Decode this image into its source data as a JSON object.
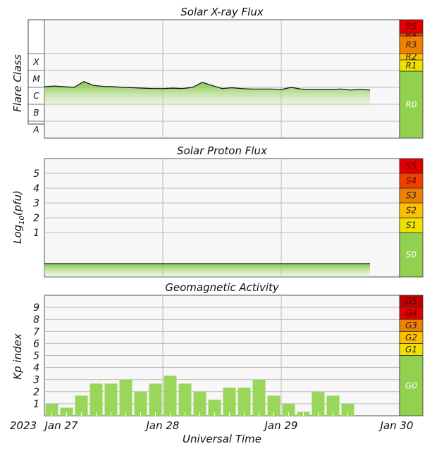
{
  "colors": {
    "green": "#92d050",
    "green_fill": "#9ad65a",
    "yellow": "#f0e000",
    "gold": "#ffc000",
    "orange": "#f08000",
    "red_orange": "#f04000",
    "red": "#e00000",
    "dark_red": "#c00000",
    "grid": "#bbbbbb",
    "line": "#111111"
  },
  "chart_data": [
    {
      "type": "area",
      "title": "Solar X-ray Flux",
      "ylabel": "Flare Class",
      "log_scale": true,
      "ylim": [
        1e-09,
        0.01
      ],
      "y_classes": [
        {
          "label": "A",
          "value": 1e-08
        },
        {
          "label": "B",
          "value": 1e-07
        },
        {
          "label": "C",
          "value": 1e-06
        },
        {
          "label": "M",
          "value": 1e-05
        },
        {
          "label": "X",
          "value": 0.0001
        }
      ],
      "x": [
        "2023-01-27 00:00",
        "2023-01-27 02:00",
        "2023-01-27 04:00",
        "2023-01-27 06:00",
        "2023-01-27 08:00",
        "2023-01-27 10:00",
        "2023-01-27 12:00",
        "2023-01-27 14:00",
        "2023-01-27 16:00",
        "2023-01-27 18:00",
        "2023-01-27 20:00",
        "2023-01-27 22:00",
        "2023-01-28 00:00",
        "2023-01-28 02:00",
        "2023-01-28 04:00",
        "2023-01-28 06:00",
        "2023-01-28 08:00",
        "2023-01-28 10:00",
        "2023-01-28 12:00",
        "2023-01-28 14:00",
        "2023-01-28 16:00",
        "2023-01-28 18:00",
        "2023-01-28 20:00",
        "2023-01-28 22:00",
        "2023-01-29 00:00",
        "2023-01-29 02:00",
        "2023-01-29 04:00",
        "2023-01-29 06:00",
        "2023-01-29 08:00",
        "2023-01-29 10:00",
        "2023-01-29 12:00",
        "2023-01-29 14:00",
        "2023-01-29 16:00",
        "2023-01-29 18:00"
      ],
      "values": [
        1.1e-06,
        1.2e-06,
        1.1e-06,
        1e-06,
        2.2e-06,
        1.3e-06,
        1.15e-06,
        1.1e-06,
        1e-06,
        9.5e-07,
        9e-07,
        8.5e-07,
        8.5e-07,
        9e-07,
        8.5e-07,
        1e-06,
        2e-06,
        1.3e-06,
        8.5e-07,
        9.5e-07,
        8.5e-07,
        8e-07,
        8e-07,
        8e-07,
        7.5e-07,
        1e-06,
        8e-07,
        7.5e-07,
        7.5e-07,
        7.5e-07,
        8e-07,
        7e-07,
        7.5e-07,
        7e-07
      ],
      "scale": [
        {
          "label": "R0",
          "color": "#92d050"
        },
        {
          "label": "R1",
          "color": "#f0e000"
        },
        {
          "label": "R2",
          "color": "#ffc000"
        },
        {
          "label": "R3",
          "color": "#f08000"
        },
        {
          "label": "R4",
          "color": "#f04000"
        },
        {
          "label": "R5",
          "color": "#e00000"
        }
      ],
      "grid": true
    },
    {
      "type": "area",
      "title": "Solar Proton Flux",
      "ylabel": "Log10(pfu)",
      "ylabel_base": "Log",
      "ylabel_sub": "10",
      "ylabel_rest": "(pfu)",
      "ylim": [
        -2,
        6
      ],
      "yticks": [
        1,
        2,
        3,
        4,
        5
      ],
      "x": [
        "2023-01-27 00:00",
        "2023-01-27 12:00",
        "2023-01-28 00:00",
        "2023-01-28 12:00",
        "2023-01-29 00:00",
        "2023-01-29 12:00",
        "2023-01-29 18:00"
      ],
      "values": [
        -1.1,
        -1.1,
        -1.1,
        -1.1,
        -1.1,
        -1.1,
        -1.1
      ],
      "scale": [
        {
          "label": "S0",
          "color": "#92d050"
        },
        {
          "label": "S1",
          "color": "#f0e000"
        },
        {
          "label": "S2",
          "color": "#ffc000"
        },
        {
          "label": "S3",
          "color": "#f08000"
        },
        {
          "label": "S4",
          "color": "#f04000"
        },
        {
          "label": "S5",
          "color": "#e00000"
        }
      ],
      "grid": true
    },
    {
      "type": "bar",
      "title": "Geomagnetic Activity",
      "ylabel": "Kp index",
      "xlabel": "Universal Time",
      "ylim": [
        0,
        10
      ],
      "yticks": [
        1,
        2,
        3,
        4,
        5,
        6,
        7,
        8,
        9
      ],
      "categories": [
        "2023-01-27 00:00",
        "2023-01-27 03:00",
        "2023-01-27 06:00",
        "2023-01-27 09:00",
        "2023-01-27 12:00",
        "2023-01-27 15:00",
        "2023-01-27 18:00",
        "2023-01-27 21:00",
        "2023-01-28 00:00",
        "2023-01-28 03:00",
        "2023-01-28 06:00",
        "2023-01-28 09:00",
        "2023-01-28 12:00",
        "2023-01-28 15:00",
        "2023-01-28 18:00",
        "2023-01-28 21:00",
        "2023-01-29 00:00",
        "2023-01-29 03:00",
        "2023-01-29 06:00",
        "2023-01-29 09:00",
        "2023-01-29 12:00"
      ],
      "values": [
        1.0,
        0.67,
        1.67,
        2.67,
        2.67,
        3.0,
        2.0,
        2.67,
        3.33,
        2.67,
        2.0,
        1.33,
        2.33,
        2.33,
        3.0,
        1.67,
        1.0,
        0.33,
        2.0,
        1.67,
        1.0
      ],
      "scale": [
        {
          "label": "G0",
          "color": "#92d050"
        },
        {
          "label": "G1",
          "color": "#f0e000"
        },
        {
          "label": "G2",
          "color": "#ffc000"
        },
        {
          "label": "G3",
          "color": "#f08000"
        },
        {
          "label": "G4",
          "color": "#e00000"
        },
        {
          "label": "G5",
          "color": "#c00000"
        }
      ],
      "grid": true
    }
  ],
  "x_axis": {
    "year": "2023",
    "tick_labels": [
      "Jan 27",
      "Jan 28",
      "Jan 29",
      "Jan 30"
    ],
    "xlabel": "Universal Time",
    "xlim": [
      "2023-01-27 00:00",
      "2023-01-30 00:00"
    ]
  }
}
